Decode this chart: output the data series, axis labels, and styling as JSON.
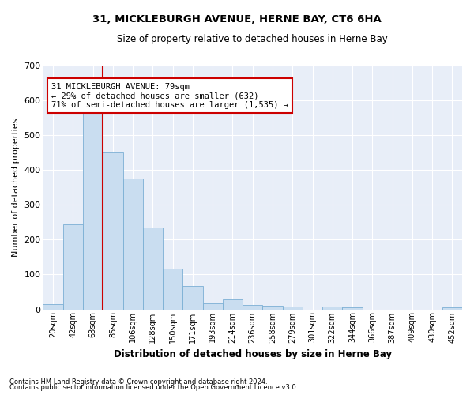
{
  "title": "31, MICKLEBURGH AVENUE, HERNE BAY, CT6 6HA",
  "subtitle": "Size of property relative to detached houses in Herne Bay",
  "xlabel": "Distribution of detached houses by size in Herne Bay",
  "ylabel": "Number of detached properties",
  "bar_color": "#c9ddf0",
  "bar_edge_color": "#7bafd4",
  "bg_color": "#e8eef8",
  "grid_color": "#ffffff",
  "categories": [
    "20sqm",
    "42sqm",
    "63sqm",
    "85sqm",
    "106sqm",
    "128sqm",
    "150sqm",
    "171sqm",
    "193sqm",
    "214sqm",
    "236sqm",
    "258sqm",
    "279sqm",
    "301sqm",
    "322sqm",
    "344sqm",
    "366sqm",
    "387sqm",
    "409sqm",
    "430sqm",
    "452sqm"
  ],
  "values": [
    15,
    245,
    585,
    450,
    375,
    235,
    118,
    68,
    17,
    28,
    12,
    10,
    8,
    0,
    8,
    5,
    0,
    0,
    0,
    0,
    5
  ],
  "ylim": [
    0,
    700
  ],
  "yticks": [
    0,
    100,
    200,
    300,
    400,
    500,
    600,
    700
  ],
  "red_line_x": 2.5,
  "annotation_text": "31 MICKLEBURGH AVENUE: 79sqm\n← 29% of detached houses are smaller (632)\n71% of semi-detached houses are larger (1,535) →",
  "annotation_box_color": "#ffffff",
  "annotation_box_edge": "#cc0000",
  "red_line_color": "#cc0000",
  "footnote1": "Contains HM Land Registry data © Crown copyright and database right 2024.",
  "footnote2": "Contains public sector information licensed under the Open Government Licence v3.0."
}
